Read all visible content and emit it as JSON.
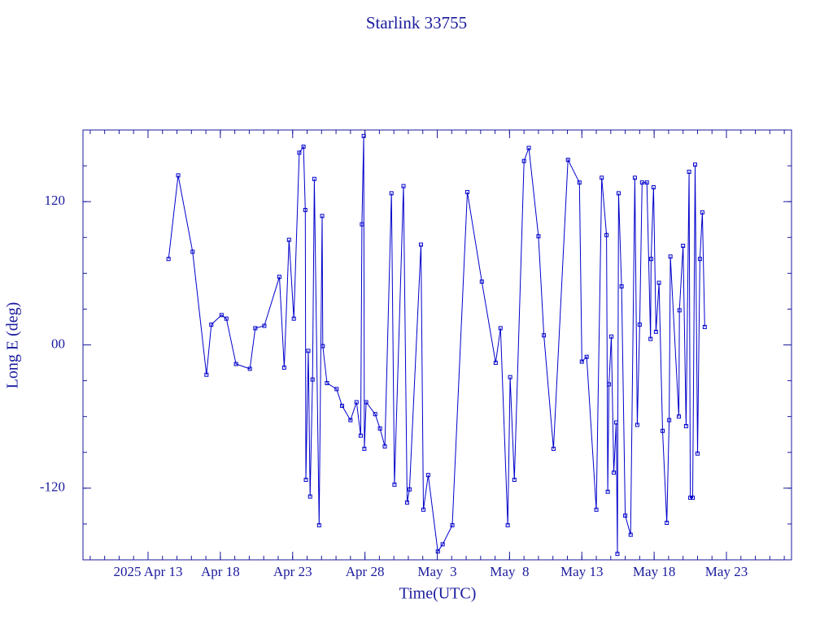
{
  "chart_data": {
    "type": "line",
    "title": "Starlink 33755",
    "x_label": "Time(UTC)",
    "y_label": "Long E (deg)",
    "xlim": [
      "2025-04-08T12:00",
      "2025-05-27T12:00"
    ],
    "xticks": [
      {
        "value": "2025-04-13T00:00",
        "label": "2025 Apr 13"
      },
      {
        "value": "2025-04-18T00:00",
        "label": "Apr 18"
      },
      {
        "value": "2025-04-23T00:00",
        "label": "Apr 23"
      },
      {
        "value": "2025-04-28T00:00",
        "label": "Apr 28"
      },
      {
        "value": "2025-05-03T00:00",
        "label": "May  3"
      },
      {
        "value": "2025-05-08T00:00",
        "label": "May  8"
      },
      {
        "value": "2025-05-13T00:00",
        "label": "May 13"
      },
      {
        "value": "2025-05-18T00:00",
        "label": "May 18"
      },
      {
        "value": "2025-05-23T00:00",
        "label": "May 23"
      }
    ],
    "ylim": [
      -180,
      180
    ],
    "yticks": [
      -120,
      {
        "value": 0,
        "label": "00"
      },
      120
    ],
    "series": [
      {
        "color": "#0000cc",
        "x": [
          "2025-04-14T10:00",
          "2025-04-15T02:00",
          "2025-04-16T02:00",
          "2025-04-17T01:00",
          "2025-04-17T09:00",
          "2025-04-18T02:00",
          "2025-04-18T10:00",
          "2025-04-19T02:00",
          "2025-04-20T01:00",
          "2025-04-20T10:00",
          "2025-04-21T01:00",
          "2025-04-22T02:00",
          "2025-04-22T10:00",
          "2025-04-22T18:00",
          "2025-04-23T02:00",
          "2025-04-23T11:00",
          "2025-04-23T18:00",
          "2025-04-23T21:00",
          "2025-04-23T22:00",
          "2025-04-24T02:00",
          "2025-04-24T05:00",
          "2025-04-24T09:00",
          "2025-04-24T12:00",
          "2025-04-24T20:00",
          "2025-04-25T01:00",
          "2025-04-25T02:00",
          "2025-04-25T09:00",
          "2025-04-26T01:00",
          "2025-04-26T10:00",
          "2025-04-27T00:00",
          "2025-04-27T10:00",
          "2025-04-27T17:00",
          "2025-04-27T19:00",
          "2025-04-27T22:00",
          "2025-04-27T23:00",
          "2025-04-28T02:00",
          "2025-04-28T17:00",
          "2025-04-29T01:00",
          "2025-04-29T09:00",
          "2025-04-29T20:00",
          "2025-04-30T01:00",
          "2025-04-30T16:00",
          "2025-04-30T22:00",
          "2025-05-01T02:00",
          "2025-05-01T21:00",
          "2025-05-02T01:00",
          "2025-05-02T09:00",
          "2025-05-03T01:00",
          "2025-05-03T09:00",
          "2025-05-04T01:00",
          "2025-05-05T02:00",
          "2025-05-06T02:00",
          "2025-05-07T01:00",
          "2025-05-07T09:00",
          "2025-05-07T21:00",
          "2025-05-08T01:00",
          "2025-05-08T08:00",
          "2025-05-09T00:00",
          "2025-05-09T08:00",
          "2025-05-10T00:00",
          "2025-05-10T09:00",
          "2025-05-11T01:00",
          "2025-05-12T01:00",
          "2025-05-12T20:00",
          "2025-05-13T00:00",
          "2025-05-13T08:00",
          "2025-05-14T00:00",
          "2025-05-14T09:00",
          "2025-05-14T17:00",
          "2025-05-14T19:00",
          "2025-05-14T21:00",
          "2025-05-15T01:00",
          "2025-05-15T05:00",
          "2025-05-15T09:00",
          "2025-05-15T11:00",
          "2025-05-15T13:00",
          "2025-05-15T18:00",
          "2025-05-16T00:00",
          "2025-05-16T09:00",
          "2025-05-16T16:00",
          "2025-05-16T20:00",
          "2025-05-17T00:00",
          "2025-05-17T04:00",
          "2025-05-17T12:00",
          "2025-05-17T18:00",
          "2025-05-17T19:00",
          "2025-05-17T23:00",
          "2025-05-18T03:00",
          "2025-05-18T08:00",
          "2025-05-18T14:00",
          "2025-05-18T21:00",
          "2025-05-19T01:00",
          "2025-05-19T03:00",
          "2025-05-19T17:00",
          "2025-05-19T18:00",
          "2025-05-20T00:00",
          "2025-05-20T05:00",
          "2025-05-20T10:00",
          "2025-05-20T12:00",
          "2025-05-20T16:00",
          "2025-05-20T20:00",
          "2025-05-21T00:00",
          "2025-05-21T04:00",
          "2025-05-21T08:00",
          "2025-05-21T12:00"
        ],
        "values": [
          72,
          142,
          78,
          -25,
          17,
          25,
          22,
          -16,
          -20,
          14,
          16,
          57,
          -19,
          88,
          22,
          161,
          166,
          113,
          -113,
          -5,
          -127,
          -29,
          139,
          -151,
          108,
          -1,
          -32,
          -37,
          -51,
          -63,
          -48,
          -76,
          101,
          175,
          -87,
          -48,
          -58,
          -70,
          -85,
          127,
          -117,
          133,
          -132,
          -121,
          84,
          -138,
          -109,
          -173,
          -167,
          -151,
          128,
          53,
          -15,
          14,
          -151,
          -27,
          -113,
          154,
          165,
          91,
          8,
          -87,
          155,
          136,
          -14,
          -10,
          -138,
          140,
          92,
          -123,
          -33,
          7,
          -107,
          -65,
          -175,
          127,
          49,
          -143,
          -159,
          140,
          -67,
          17,
          136,
          136,
          5,
          72,
          132,
          11,
          52,
          -72,
          -149,
          -63,
          74,
          -60,
          29,
          83,
          -68,
          145,
          -128,
          -128,
          151,
          -91,
          72,
          111,
          15
        ]
      }
    ]
  }
}
